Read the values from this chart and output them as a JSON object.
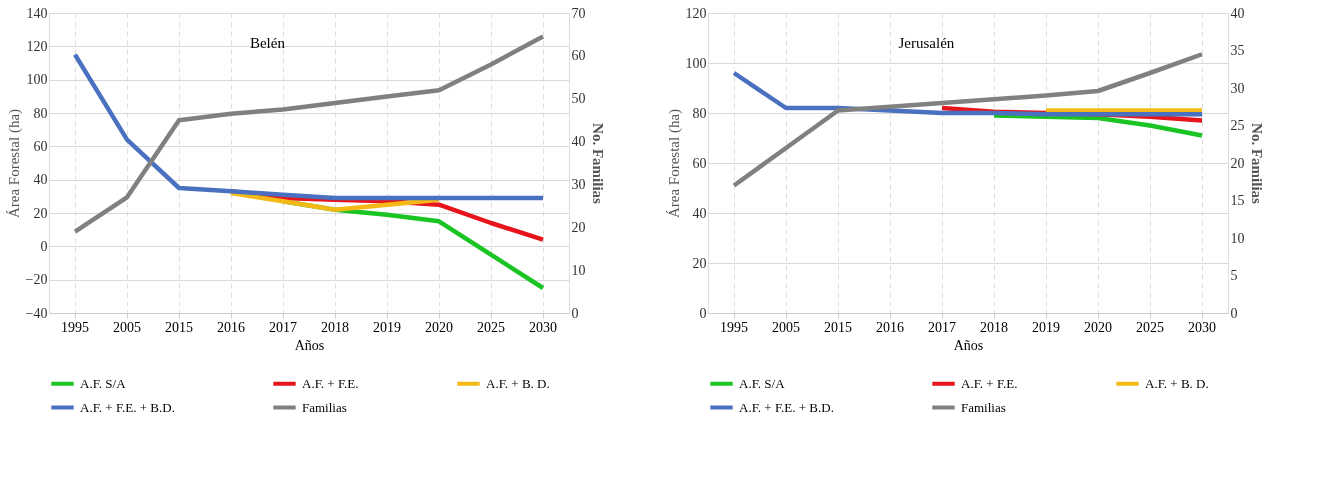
{
  "chart_data": [
    {
      "type": "line",
      "title": "Belén",
      "xlabel": "Años",
      "ylabel": "Área Forestal (ha)",
      "y2label": "No. Familias",
      "categories": [
        "1995",
        "2005",
        "2015",
        "2016",
        "2017",
        "2018",
        "2019",
        "2020",
        "2025",
        "2030"
      ],
      "ylim": [
        -40,
        140
      ],
      "yticks": [
        -40,
        -20,
        0,
        20,
        40,
        60,
        80,
        100,
        120,
        140
      ],
      "y2lim": [
        0,
        70
      ],
      "y2ticks": [
        0,
        10,
        20,
        30,
        40,
        50,
        60,
        70
      ],
      "grid": true,
      "legend": "bottom",
      "marker": "none",
      "line_style": "solid",
      "series": [
        {
          "name": "A.F. S/A",
          "color": "#19c423",
          "values": [
            null,
            null,
            null,
            null,
            27,
            22,
            19,
            15,
            -5,
            -25
          ]
        },
        {
          "name": "A.F. + F.E.",
          "color": "#e8141b",
          "values": [
            null,
            null,
            null,
            33,
            29,
            28,
            27,
            25,
            14,
            4
          ]
        },
        {
          "name": "A.F. + B. D.",
          "color": "#f4b916",
          "values": [
            null,
            null,
            null,
            32,
            27,
            22,
            25,
            28,
            null,
            null
          ]
        },
        {
          "name": "A.F. + F.E. + B.D.",
          "color": "#4a70c0",
          "values": [
            115,
            64,
            35,
            33,
            31,
            29,
            29,
            29,
            29,
            29
          ]
        },
        {
          "name": "Familias",
          "color": "#808080",
          "axis": "y2",
          "values": [
            19,
            27,
            45,
            46.5,
            47.5,
            49,
            50.5,
            52,
            58,
            64.5
          ]
        }
      ]
    },
    {
      "type": "line",
      "title": "Jerusalén",
      "xlabel": "Años",
      "ylabel": "Área Forestal (ha)",
      "y2label": "No. Familias",
      "categories": [
        "1995",
        "2005",
        "2015",
        "2016",
        "2017",
        "2018",
        "2019",
        "2020",
        "2025",
        "2030"
      ],
      "ylim": [
        0,
        120
      ],
      "yticks": [
        0,
        20,
        40,
        60,
        80,
        100,
        120
      ],
      "y2lim": [
        0,
        40
      ],
      "y2ticks": [
        0,
        5,
        10,
        15,
        20,
        25,
        30,
        35,
        40
      ],
      "grid": true,
      "legend": "bottom",
      "marker": "none",
      "line_style": "solid",
      "series": [
        {
          "name": "A.F. S/A",
          "color": "#19c423",
          "values": [
            null,
            null,
            null,
            null,
            null,
            79,
            78.5,
            78,
            75,
            71
          ]
        },
        {
          "name": "A.F. + F.E.",
          "color": "#e8141b",
          "values": [
            null,
            null,
            null,
            null,
            82,
            80.5,
            80,
            79.5,
            78.5,
            77
          ]
        },
        {
          "name": "A.F. + B. D.",
          "color": "#f4b916",
          "values": [
            null,
            null,
            null,
            null,
            null,
            null,
            81,
            81,
            81,
            81
          ]
        },
        {
          "name": "A.F. + F.E. + B.D.",
          "color": "#4a70c0",
          "values": [
            96,
            82,
            82,
            81,
            80,
            80,
            79.5,
            79.5,
            79.5,
            79.5
          ]
        },
        {
          "name": "Familias",
          "color": "#808080",
          "axis": "y2",
          "values": [
            17,
            22,
            27,
            27.5,
            28,
            28.5,
            29,
            29.6,
            32,
            34.5
          ]
        }
      ]
    }
  ]
}
